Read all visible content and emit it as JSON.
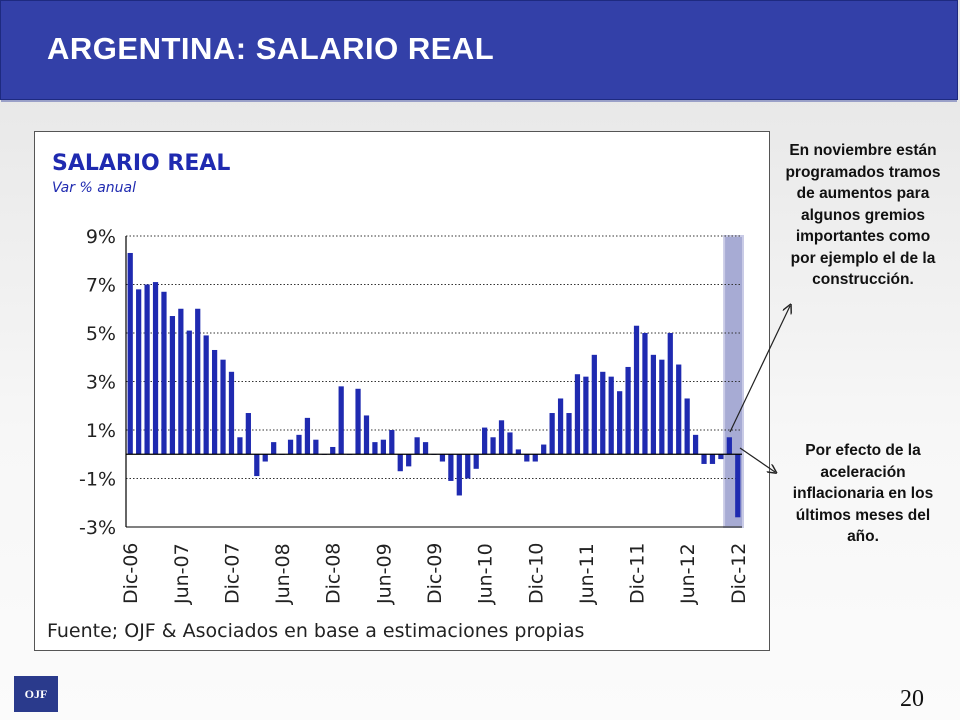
{
  "header": {
    "title": "ARGENTINA: SALARIO REAL"
  },
  "annotations": {
    "note1": "En noviembre están programados tramos de aumentos para algunos gremios importantes como por ejemplo el de la construcción.",
    "note2": "Por efecto de la aceleración inflacionaria en los últimos meses del año."
  },
  "footer": {
    "logo": "OJF",
    "page_number": "20"
  },
  "colors": {
    "header_bg": "#3340a8",
    "bar": "#1f2ab0",
    "title_text": "#1f2ab0",
    "highlight_band": "#3b44a0"
  },
  "chart_data": {
    "type": "bar",
    "title": "SALARIO REAL",
    "subtitle": "Var % anual",
    "source": "Fuente; OJF & Asociados en base a estimaciones propias",
    "x_tick_labels": [
      "Dic-06",
      "Jun-07",
      "Dic-07",
      "Jun-08",
      "Dic-08",
      "Jun-09",
      "Dic-09",
      "Jun-10",
      "Dic-10",
      "Jun-11",
      "Dic-11",
      "Jun-12",
      "Dic-12"
    ],
    "y_tick_labels": [
      "9%",
      "7%",
      "5%",
      "3%",
      "1%",
      "-1%",
      "-3%"
    ],
    "ylim": [
      -3,
      9
    ],
    "grid": "dotted horizontal",
    "x_start": "Dic-06",
    "x_end": "Dic-12",
    "highlight_range": [
      "Nov-12",
      "Dic-12"
    ],
    "values": [
      8.3,
      6.8,
      7.0,
      7.1,
      6.7,
      5.7,
      6.0,
      5.1,
      6.0,
      4.9,
      4.3,
      3.9,
      3.4,
      0.7,
      1.7,
      -0.9,
      -0.3,
      0.5,
      0.0,
      0.6,
      0.8,
      1.5,
      0.6,
      0.0,
      0.3,
      2.8,
      0.0,
      2.7,
      1.6,
      0.5,
      0.6,
      1.0,
      -0.7,
      -0.5,
      0.7,
      0.5,
      0.0,
      -0.3,
      -1.1,
      -1.7,
      -1.0,
      -0.6,
      1.1,
      0.7,
      1.4,
      0.9,
      0.2,
      -0.3,
      -0.3,
      0.4,
      1.7,
      2.3,
      1.7,
      3.3,
      3.2,
      4.1,
      3.4,
      3.2,
      2.6,
      3.6,
      5.3,
      5.0,
      4.1,
      3.9,
      5.0,
      3.7,
      2.3,
      0.8,
      -0.4,
      -0.4,
      -0.2,
      0.7,
      -2.6
    ]
  }
}
